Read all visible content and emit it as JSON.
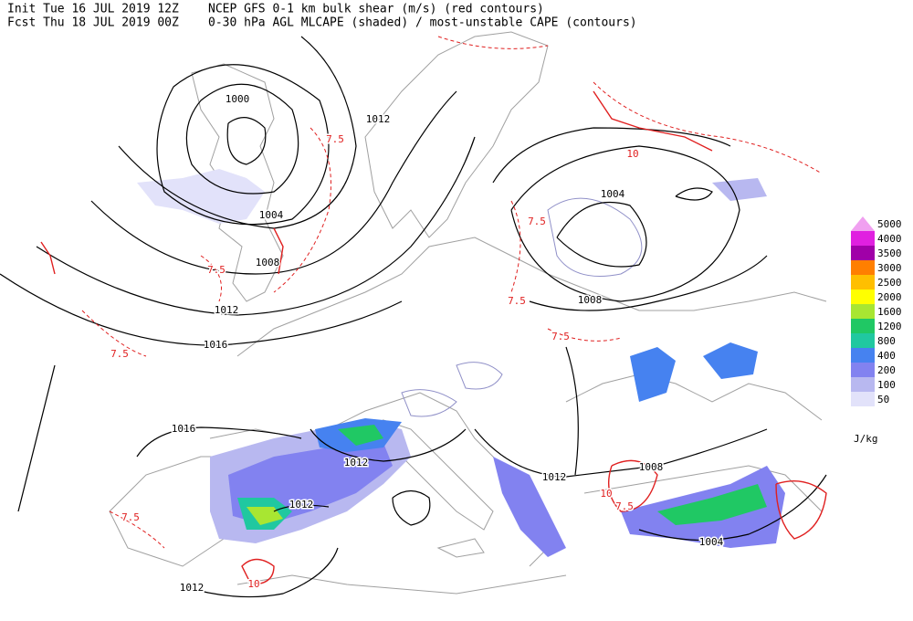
{
  "header": {
    "init": "Init  Tue 16 JUL 2019 12Z",
    "fcst": "Fcst Thu 18 JUL 2019 00Z",
    "title_line1": "NCEP GFS 0-1 km bulk shear (m/s) (red contours)",
    "title_line2": "0-30 hPa AGL MLCAPE (shaded) / most-unstable CAPE (contours)"
  },
  "legend": {
    "unit": "J/kg",
    "levels": [
      {
        "label": "5000",
        "color": "#f0a0f0"
      },
      {
        "label": "4000",
        "color": "#e020e0"
      },
      {
        "label": "3500",
        "color": "#a000a8"
      },
      {
        "label": "3000",
        "color": "#ff7f00"
      },
      {
        "label": "2500",
        "color": "#ffbf00"
      },
      {
        "label": "2000",
        "color": "#ffff00"
      },
      {
        "label": "1600",
        "color": "#a8e632"
      },
      {
        "label": "1200",
        "color": "#20c864"
      },
      {
        "label": "800",
        "color": "#20c8a0"
      },
      {
        "label": "400",
        "color": "#4682f0"
      },
      {
        "label": "200",
        "color": "#8282f0"
      },
      {
        "label": "100",
        "color": "#b8b8f0"
      },
      {
        "label": "50",
        "color": "#e2e2fa"
      }
    ]
  },
  "isobar_labels": [
    "1000",
    "1004",
    "1008",
    "1012",
    "1016",
    "1012",
    "1004",
    "1008",
    "1016",
    "1012",
    "1012",
    "1012",
    "1008",
    "1004",
    "1012"
  ],
  "shear_labels": [
    "7.5",
    "7.5",
    "7.5",
    "7.5",
    "7.5",
    "7.5",
    "7.5",
    "7.5",
    "10",
    "10",
    "10"
  ]
}
